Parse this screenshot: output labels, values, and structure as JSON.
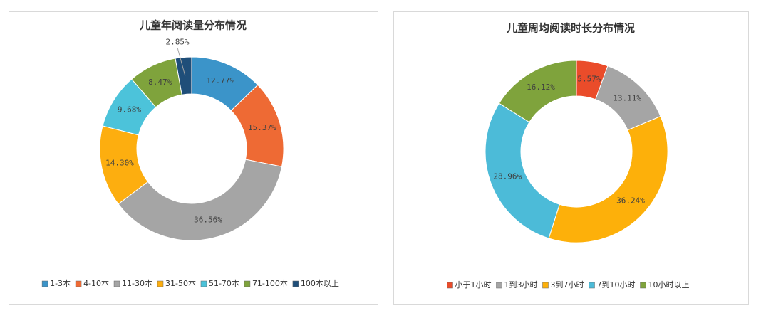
{
  "chart_data": [
    {
      "type": "donut",
      "title": "儿童年阅读量分布情况",
      "categories": [
        "1-3本",
        "4-10本",
        "11-30本",
        "31-50本",
        "51-70本",
        "71-100本",
        "100本以上"
      ],
      "values": [
        12.77,
        15.37,
        36.56,
        14.3,
        9.68,
        8.47,
        2.85
      ],
      "value_labels": [
        "12.77%",
        "15.37%",
        "36.56%",
        "14.30%",
        "9.68%",
        "8.47%",
        "2.85%"
      ],
      "colors": [
        "#3b94c9",
        "#ee6a34",
        "#a5a5a5",
        "#fdae0f",
        "#4cc3da",
        "#7fa33c",
        "#1f4e79"
      ]
    },
    {
      "type": "donut",
      "title": "儿童周均阅读时长分布情况",
      "categories": [
        "小于1小时",
        "1到3小时",
        "3到7小时",
        "7到10小时",
        "10小时以上"
      ],
      "values": [
        5.57,
        13.11,
        36.24,
        28.96,
        16.12
      ],
      "value_labels": [
        "5.57%",
        "13.11%",
        "36.24%",
        "28.96%",
        "16.12%"
      ],
      "colors": [
        "#ea4c2a",
        "#a5a5a5",
        "#fdb00a",
        "#4cbbd8",
        "#7fa33c"
      ]
    }
  ]
}
